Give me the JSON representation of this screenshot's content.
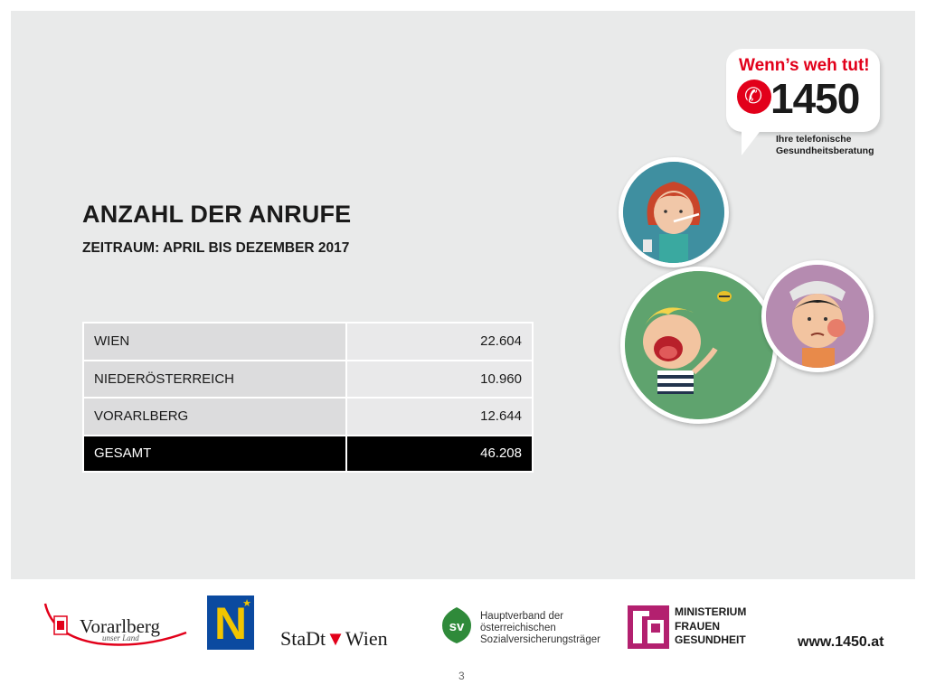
{
  "slide": {
    "title": "ANZAHL DER ANRUFE",
    "subtitle": "ZEITRAUM: APRIL BIS DEZEMBER 2017",
    "page_number": "3"
  },
  "table": {
    "rows": [
      {
        "label": "WIEN",
        "value": "22.604"
      },
      {
        "label": "NIEDERÖSTERREICH",
        "value": "10.960"
      },
      {
        "label": "VORARLBERG",
        "value": "12.644"
      }
    ],
    "total": {
      "label": "GESAMT",
      "value": "46.208"
    }
  },
  "brand_logo": {
    "headline": "Wenn’s weh tut!",
    "number": "1450",
    "tagline_line1": "Ihre telefonische",
    "tagline_line2": "Gesundheitsberatung",
    "icon": "phone-icon",
    "color": "#e2001a"
  },
  "illustrations": [
    {
      "icon": "sick-girl-thermometer-illustration",
      "bg": "#3f8fa0"
    },
    {
      "icon": "crying-boy-bee-sting-illustration",
      "bg": "#5fa36e"
    },
    {
      "icon": "girl-toothache-illustration",
      "bg": "#b58bb0"
    }
  ],
  "footer": {
    "vorarlberg": {
      "name": "Vorarlberg",
      "tagline": "unser Land"
    },
    "noe": {
      "letter": "N"
    },
    "wien": {
      "part1": "StaDt",
      "part2": "Wien"
    },
    "sv": {
      "badge": "sv",
      "line1": "Hauptverband der",
      "line2": "österreichischen",
      "line3": "Sozialversicherungsträger"
    },
    "ministry": {
      "line1": "MINISTERIUM",
      "line2": "FRAUEN",
      "line3": "GESUNDHEIT"
    },
    "url": "www.1450.at"
  }
}
